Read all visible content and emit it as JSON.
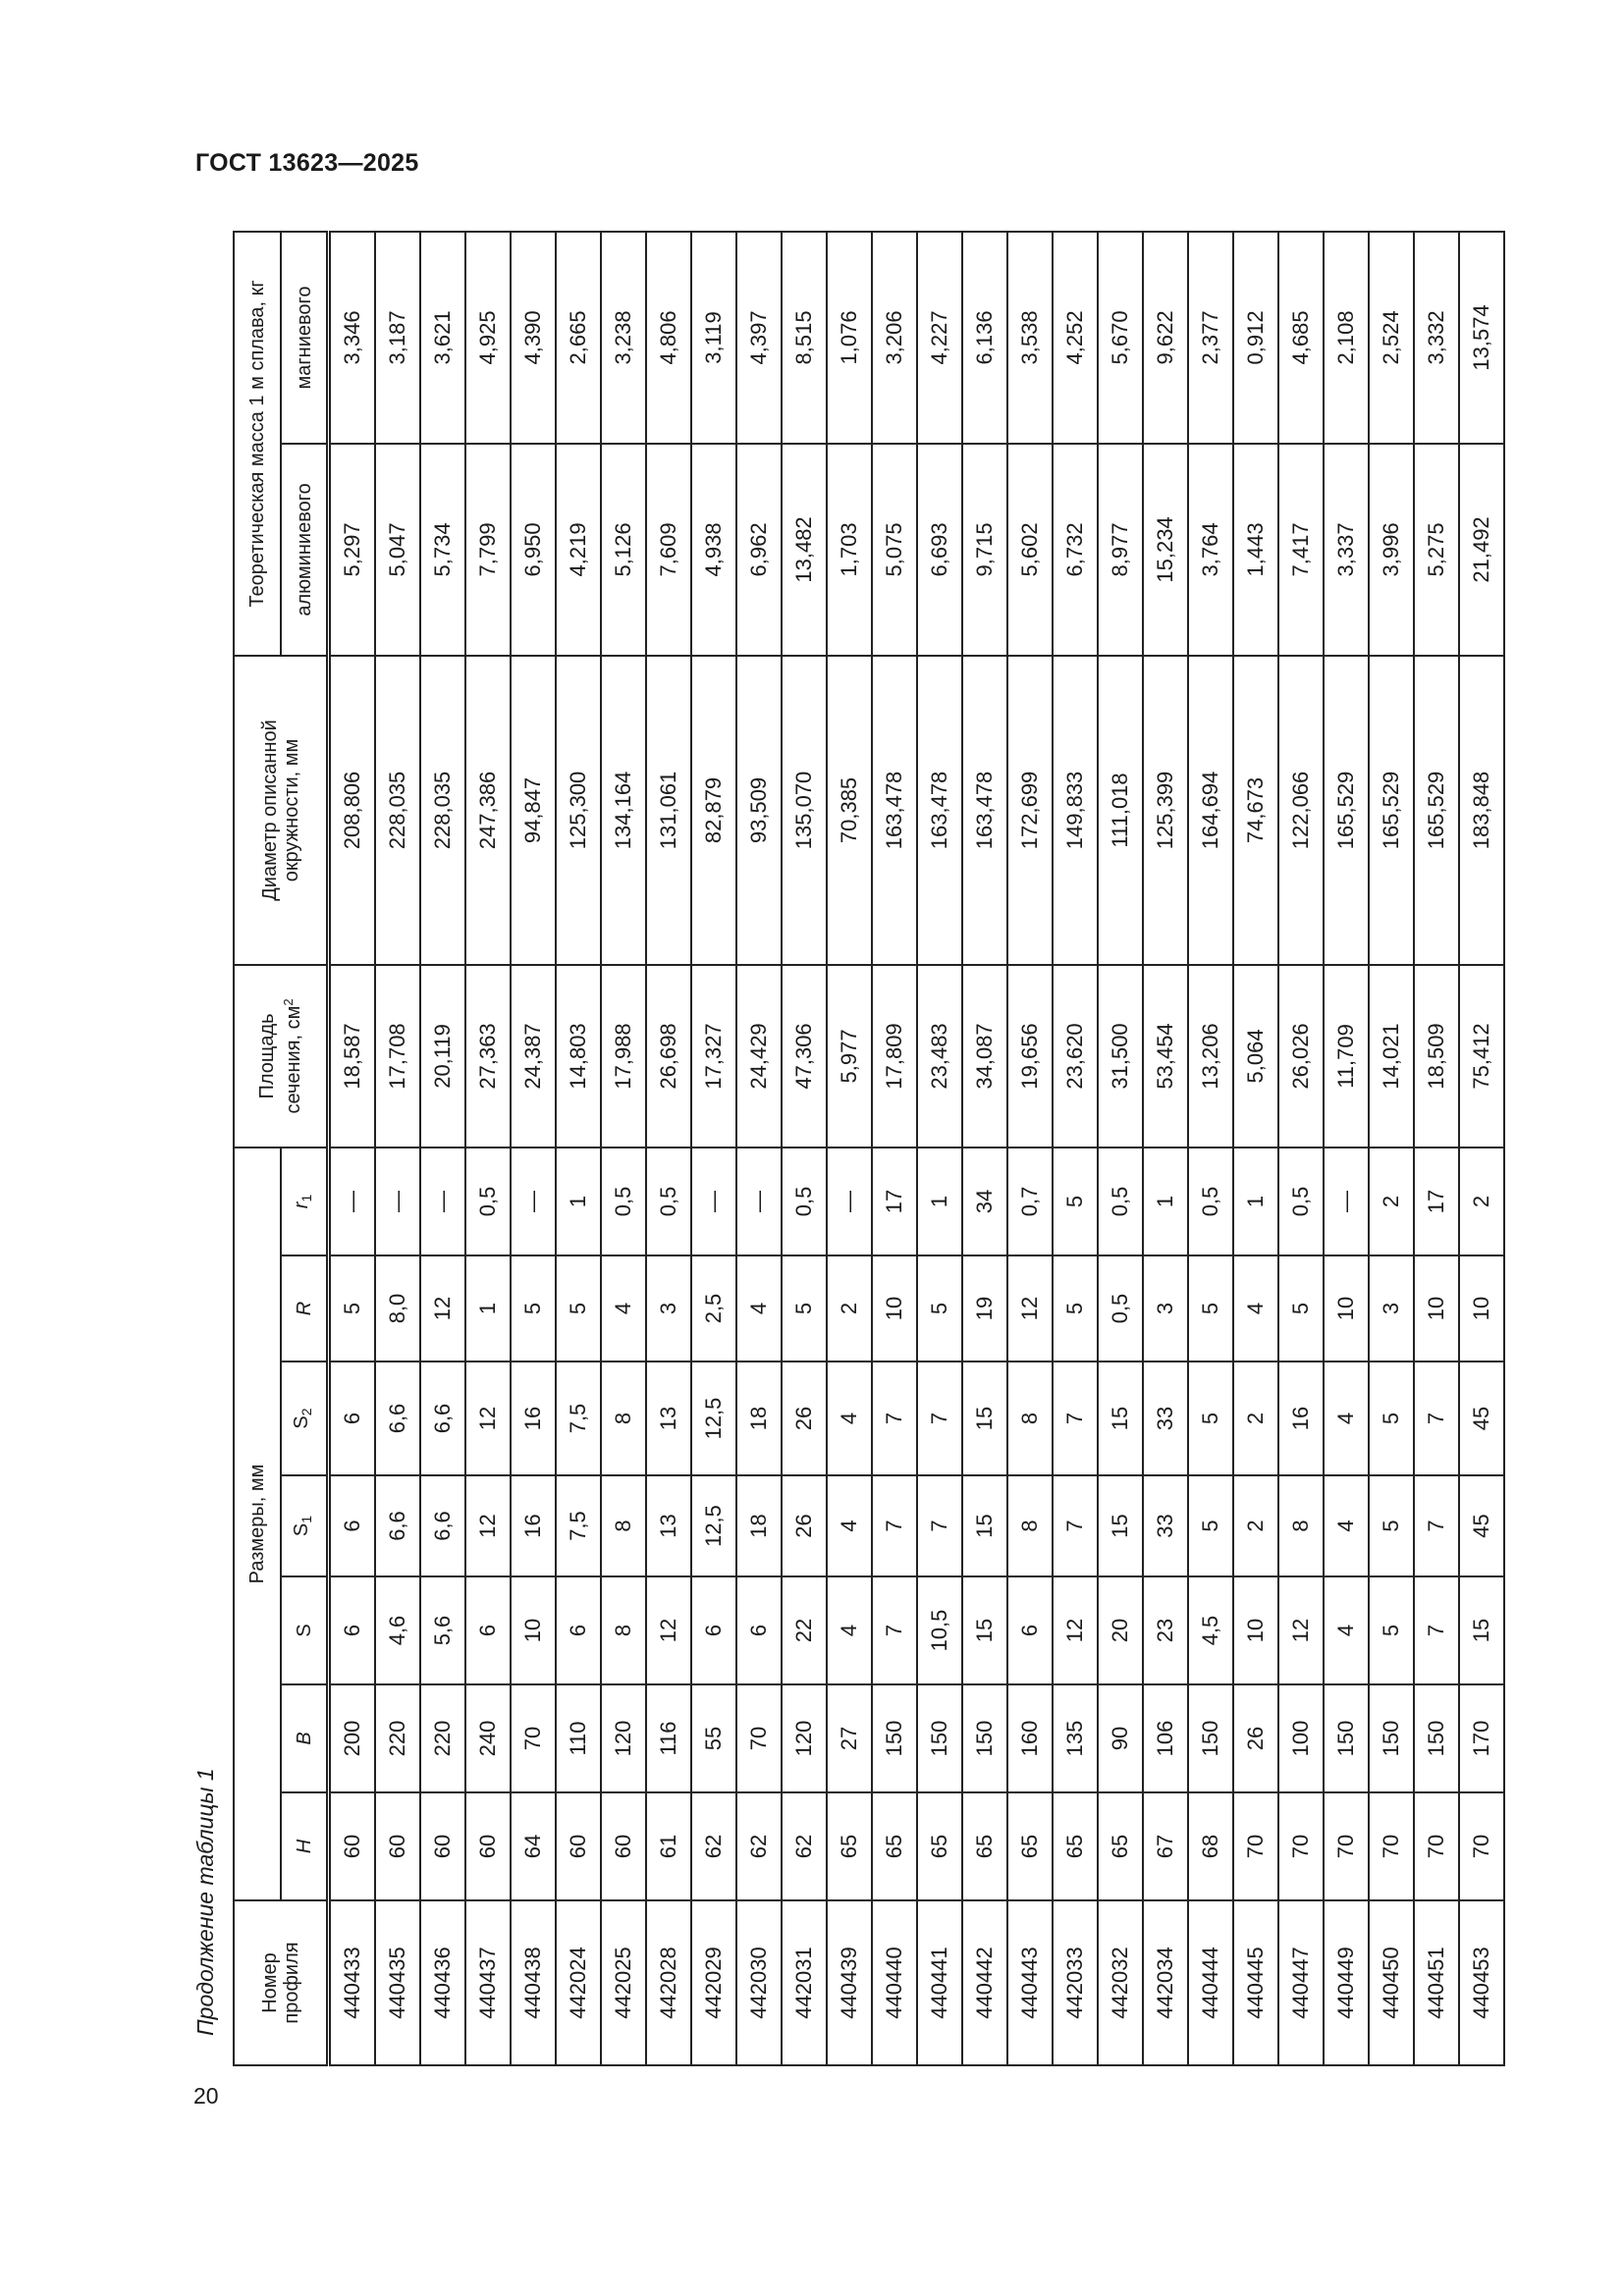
{
  "document_id": "ГОСТ 13623—2025",
  "page_number": "20",
  "caption": "Продолжение таблицы 1",
  "headers": {
    "profile_number": "Номер профиля",
    "dimensions_group": "Размеры, мм",
    "H": "H",
    "B": "B",
    "S": "S",
    "S1": {
      "base": "S",
      "sub": "1"
    },
    "S2": {
      "base": "S",
      "sub": "2"
    },
    "R": "R",
    "r1": {
      "base": "r",
      "sub": "1"
    },
    "area": {
      "text": "Площадь сечения, см",
      "sup": "2"
    },
    "diameter": "Диаметр описанной окружности, мм",
    "mass_group": "Теоретическая масса 1 м сплава, кг",
    "aluminum": "алюминиевого",
    "magnesium": "магниевого"
  },
  "rows": [
    [
      "440433",
      "60",
      "200",
      "6",
      "6",
      "6",
      "5",
      "—",
      "18,587",
      "208,806",
      "5,297",
      "3,346"
    ],
    [
      "440435",
      "60",
      "220",
      "4,6",
      "6,6",
      "6,6",
      "8,0",
      "—",
      "17,708",
      "228,035",
      "5,047",
      "3,187"
    ],
    [
      "440436",
      "60",
      "220",
      "5,6",
      "6,6",
      "6,6",
      "12",
      "—",
      "20,119",
      "228,035",
      "5,734",
      "3,621"
    ],
    [
      "440437",
      "60",
      "240",
      "6",
      "12",
      "12",
      "1",
      "0,5",
      "27,363",
      "247,386",
      "7,799",
      "4,925"
    ],
    [
      "440438",
      "64",
      "70",
      "10",
      "16",
      "16",
      "5",
      "—",
      "24,387",
      "94,847",
      "6,950",
      "4,390"
    ],
    [
      "442024",
      "60",
      "110",
      "6",
      "7,5",
      "7,5",
      "5",
      "1",
      "14,803",
      "125,300",
      "4,219",
      "2,665"
    ],
    [
      "442025",
      "60",
      "120",
      "8",
      "8",
      "8",
      "4",
      "0,5",
      "17,988",
      "134,164",
      "5,126",
      "3,238"
    ],
    [
      "442028",
      "61",
      "116",
      "12",
      "13",
      "13",
      "3",
      "0,5",
      "26,698",
      "131,061",
      "7,609",
      "4,806"
    ],
    [
      "442029",
      "62",
      "55",
      "6",
      "12,5",
      "12,5",
      "2,5",
      "—",
      "17,327",
      "82,879",
      "4,938",
      "3,119"
    ],
    [
      "442030",
      "62",
      "70",
      "6",
      "18",
      "18",
      "4",
      "—",
      "24,429",
      "93,509",
      "6,962",
      "4,397"
    ],
    [
      "442031",
      "62",
      "120",
      "22",
      "26",
      "26",
      "5",
      "0,5",
      "47,306",
      "135,070",
      "13,482",
      "8,515"
    ],
    [
      "440439",
      "65",
      "27",
      "4",
      "4",
      "4",
      "2",
      "—",
      "5,977",
      "70,385",
      "1,703",
      "1,076"
    ],
    [
      "440440",
      "65",
      "150",
      "7",
      "7",
      "7",
      "10",
      "17",
      "17,809",
      "163,478",
      "5,075",
      "3,206"
    ],
    [
      "440441",
      "65",
      "150",
      "10,5",
      "7",
      "7",
      "5",
      "1",
      "23,483",
      "163,478",
      "6,693",
      "4,227"
    ],
    [
      "440442",
      "65",
      "150",
      "15",
      "15",
      "15",
      "19",
      "34",
      "34,087",
      "163,478",
      "9,715",
      "6,136"
    ],
    [
      "440443",
      "65",
      "160",
      "6",
      "8",
      "8",
      "12",
      "0,7",
      "19,656",
      "172,699",
      "5,602",
      "3,538"
    ],
    [
      "442033",
      "65",
      "135",
      "12",
      "7",
      "7",
      "5",
      "5",
      "23,620",
      "149,833",
      "6,732",
      "4,252"
    ],
    [
      "442032",
      "65",
      "90",
      "20",
      "15",
      "15",
      "0,5",
      "0,5",
      "31,500",
      "111,018",
      "8,977",
      "5,670"
    ],
    [
      "442034",
      "67",
      "106",
      "23",
      "33",
      "33",
      "3",
      "1",
      "53,454",
      "125,399",
      "15,234",
      "9,622"
    ],
    [
      "440444",
      "68",
      "150",
      "4,5",
      "5",
      "5",
      "5",
      "0,5",
      "13,206",
      "164,694",
      "3,764",
      "2,377"
    ],
    [
      "440445",
      "70",
      "26",
      "10",
      "2",
      "2",
      "4",
      "1",
      "5,064",
      "74,673",
      "1,443",
      "0,912"
    ],
    [
      "440447",
      "70",
      "100",
      "12",
      "8",
      "16",
      "5",
      "0,5",
      "26,026",
      "122,066",
      "7,417",
      "4,685"
    ],
    [
      "440449",
      "70",
      "150",
      "4",
      "4",
      "4",
      "10",
      "—",
      "11,709",
      "165,529",
      "3,337",
      "2,108"
    ],
    [
      "440450",
      "70",
      "150",
      "5",
      "5",
      "5",
      "3",
      "2",
      "14,021",
      "165,529",
      "3,996",
      "2,524"
    ],
    [
      "440451",
      "70",
      "150",
      "7",
      "7",
      "7",
      "10",
      "17",
      "18,509",
      "165,529",
      "5,275",
      "3,332"
    ],
    [
      "440453",
      "70",
      "170",
      "15",
      "45",
      "45",
      "10",
      "2",
      "75,412",
      "183,848",
      "21,492",
      "13,574"
    ]
  ]
}
